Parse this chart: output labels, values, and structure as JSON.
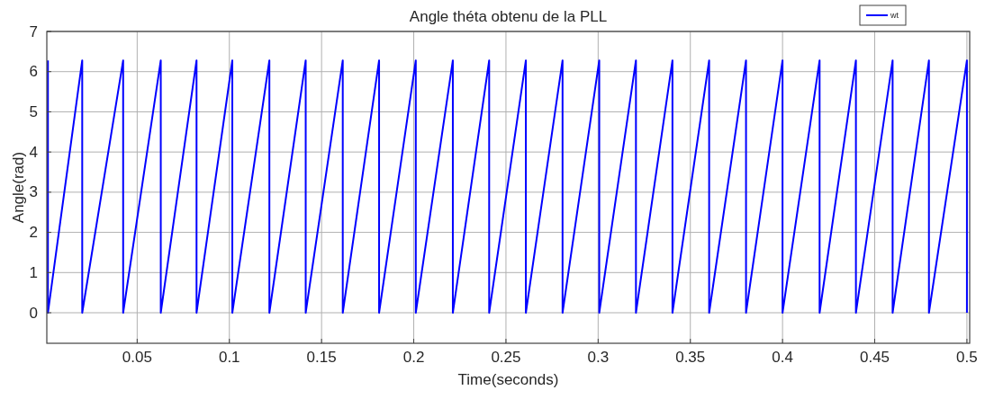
{
  "chart_data": {
    "type": "line",
    "title": "Angle théta obtenu de la PLL",
    "xlabel": "Time(seconds)",
    "ylabel": "Angle(rad)",
    "xlim": [
      0.001,
      0.5015
    ],
    "ylim": [
      -0.76,
      7
    ],
    "xticks": [
      0.05,
      0.1,
      0.15,
      0.2,
      0.25,
      0.3,
      0.35,
      0.4,
      0.45,
      0.5
    ],
    "yticks": [
      0,
      1,
      2,
      3,
      4,
      5,
      6,
      7
    ],
    "grid": true,
    "legend": "top right",
    "marker": "none",
    "line_style": "solid",
    "series": [
      {
        "name": "wt",
        "color": "#0000ff",
        "x": [
          0.0016,
          0.0016,
          0.0202,
          0.0202,
          0.0424,
          0.0424,
          0.0628,
          0.0628,
          0.0822,
          0.0822,
          0.1016,
          0.1016,
          0.1217,
          0.1217,
          0.1414,
          0.1414,
          0.1615,
          0.1615,
          0.1812,
          0.1812,
          0.2011,
          0.2011,
          0.2212,
          0.2212,
          0.2409,
          0.2409,
          0.2608,
          0.2608,
          0.2807,
          0.2807,
          0.3006,
          0.3006,
          0.3205,
          0.3205,
          0.3403,
          0.3403,
          0.3602,
          0.3602,
          0.3802,
          0.3802,
          0.4,
          0.4,
          0.4201,
          0.4201,
          0.4398,
          0.4398,
          0.4597,
          0.4597,
          0.4794,
          0.4794,
          0.5,
          0.5
        ],
        "values": [
          6.28,
          0,
          6.28,
          0,
          6.28,
          0,
          6.28,
          0,
          6.28,
          0,
          6.28,
          0,
          6.28,
          0,
          6.28,
          0,
          6.28,
          0,
          6.28,
          0,
          6.28,
          0,
          6.28,
          0,
          6.28,
          0,
          6.28,
          0,
          6.28,
          0,
          6.28,
          0,
          6.28,
          0,
          6.28,
          0,
          6.28,
          0,
          6.28,
          0,
          6.28,
          0,
          6.28,
          0,
          6.28,
          0,
          6.28,
          0,
          6.28,
          0,
          6.28,
          0
        ]
      }
    ]
  }
}
